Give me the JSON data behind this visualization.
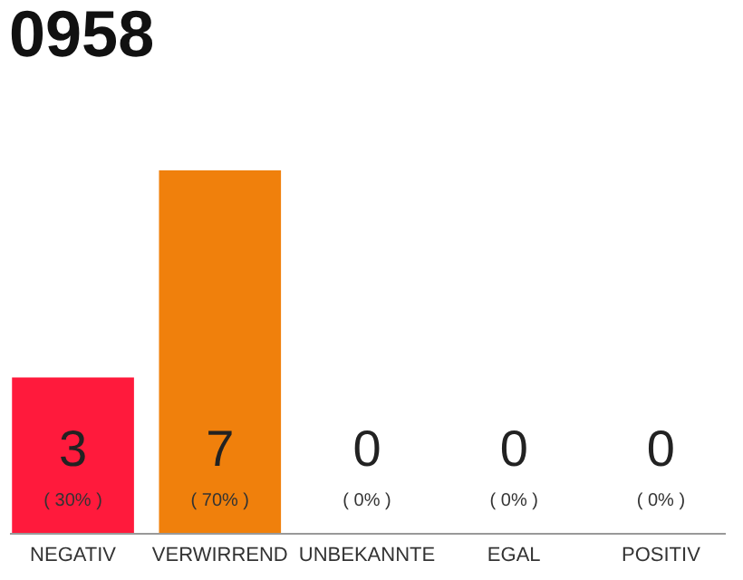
{
  "chart_data": {
    "type": "bar",
    "title": "0958",
    "categories": [
      "NEGATIV",
      "VERWIRREND",
      "UNBEKANNTE",
      "EGAL",
      "POSITIV"
    ],
    "values": [
      3,
      7,
      0,
      0,
      0
    ],
    "colors": [
      "#ff1a3c",
      "#f0800c",
      "#aaaaaa",
      "#aaaaaa",
      "#aaaaaa"
    ],
    "data_labels": true,
    "annotations": [
      "( 30% )",
      "( 70% )",
      "( 0% )",
      "( 0% )",
      "( 0% )"
    ],
    "tick_labels": "x",
    "grid": false,
    "legend": false
  }
}
